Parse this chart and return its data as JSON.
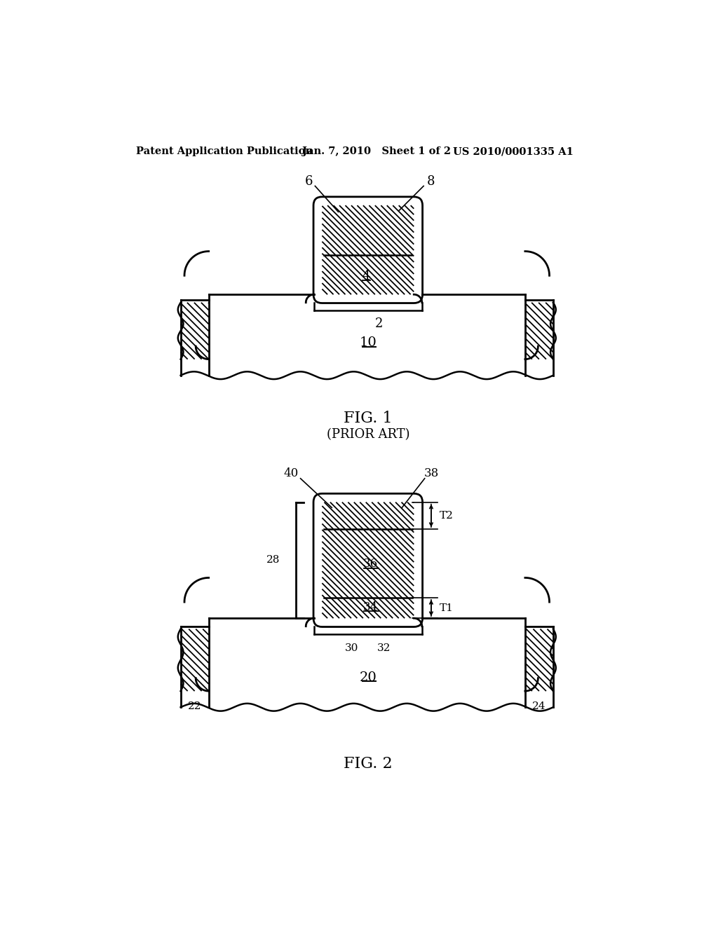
{
  "header_left": "Patent Application Publication",
  "header_mid": "Jan. 7, 2010   Sheet 1 of 2",
  "header_right": "US 2010/0001335 A1",
  "fig1_label": "FIG. 1",
  "fig1_sub": "(PRIOR ART)",
  "fig2_label": "FIG. 2",
  "background_color": "#ffffff",
  "line_color": "#000000"
}
